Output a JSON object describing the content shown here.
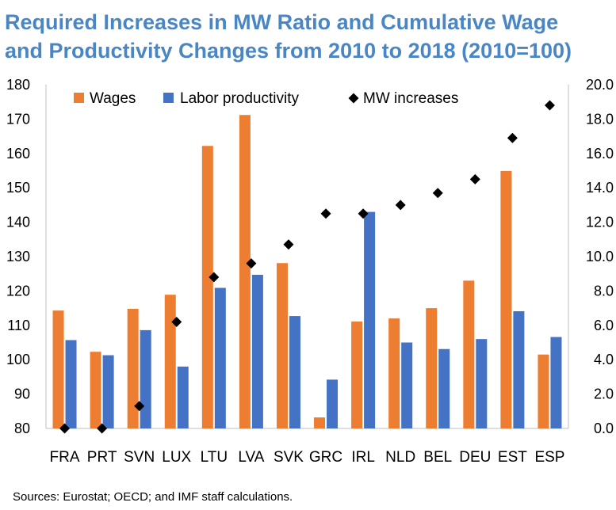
{
  "chart_data": {
    "type": "bar",
    "title": "Required Increases in MW Ratio and Cumulative Wage and Productivity Changes from 2010 to 2018 (2010=100)",
    "title_lines": [
      "Required Increases in MW Ratio and Cumulative Wage",
      "and Productivity Changes from 2010 to 2018 (2010=100)"
    ],
    "categories": [
      "FRA",
      "PRT",
      "SVN",
      "LUX",
      "LTU",
      "LVA",
      "SVK",
      "GRC",
      "IRL",
      "NLD",
      "BEL",
      "DEU",
      "EST",
      "ESP"
    ],
    "series": [
      {
        "name": "Wages",
        "kind": "bar",
        "axis": "left",
        "color": "#ed7d31",
        "values": [
          114.3,
          102.3,
          114.8,
          118.9,
          162.2,
          171.2,
          128.1,
          83.2,
          111.1,
          112.0,
          115.0,
          123.0,
          154.9,
          101.5
        ]
      },
      {
        "name": "Labor productivity",
        "kind": "bar",
        "axis": "left",
        "color": "#4472c4",
        "values": [
          105.7,
          101.3,
          108.6,
          98.0,
          120.9,
          124.7,
          112.7,
          94.2,
          143.0,
          105.0,
          103.1,
          106.0,
          114.1,
          106.6
        ]
      },
      {
        "name": "MW increases",
        "kind": "scatter",
        "axis": "right",
        "color": "#000000",
        "marker": "diamond",
        "values": [
          0.0,
          0.0,
          1.3,
          6.2,
          8.8,
          9.6,
          10.7,
          12.5,
          12.5,
          13.0,
          13.7,
          14.5,
          16.9,
          18.8
        ]
      }
    ],
    "y_left": {
      "min": 80,
      "max": 180,
      "step": 10,
      "ticks": [
        "80",
        "90",
        "100",
        "110",
        "120",
        "130",
        "140",
        "150",
        "160",
        "170",
        "180"
      ]
    },
    "y_right": {
      "min": 0,
      "max": 20,
      "step": 2,
      "ticks": [
        "0.0",
        "2.0",
        "4.0",
        "6.0",
        "8.0",
        "10.0",
        "12.0",
        "14.0",
        "16.0",
        "18.0",
        "20.0"
      ]
    },
    "legend_position": "top",
    "grid": false
  },
  "source": "Sources: Eurostat; OECD; and IMF staff calculations."
}
